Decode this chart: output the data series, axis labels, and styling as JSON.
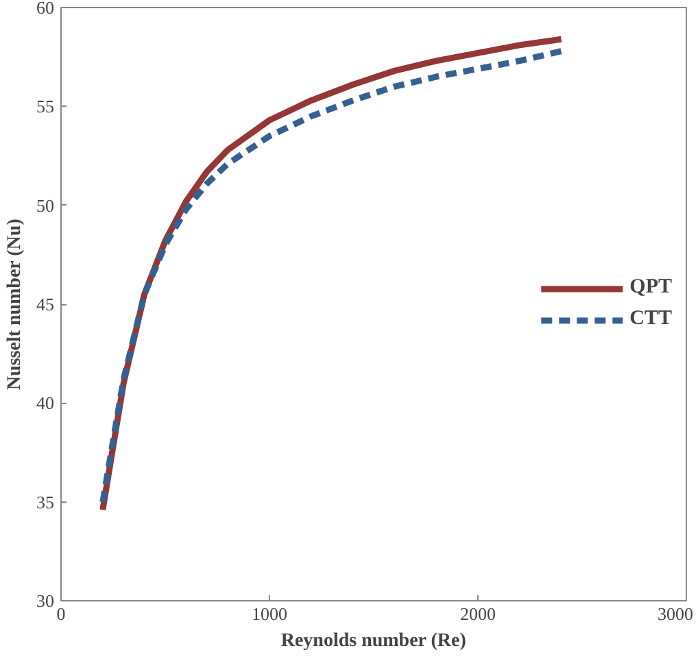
{
  "chart_data": {
    "type": "line",
    "xlabel": "Reynolds number (Re)",
    "ylabel": "Nusselt number (Nu)",
    "xlim": [
      0,
      3000
    ],
    "xticks": [
      0,
      1000,
      2000,
      3000
    ],
    "ylim": [
      30,
      60
    ],
    "yticks": [
      30,
      35,
      40,
      45,
      50,
      55,
      60
    ],
    "grid": false,
    "legend": "right",
    "marker": "none",
    "series": [
      {
        "name": "QPT",
        "color": "#953735",
        "line_style": "solid",
        "x": [
          200,
          300,
          400,
          500,
          600,
          700,
          800,
          1000,
          1200,
          1400,
          1600,
          1800,
          2000,
          2200,
          2400
        ],
        "values": [
          34.6,
          41,
          45.5,
          48.2,
          50.2,
          51.7,
          52.8,
          54.3,
          55.3,
          56.1,
          56.8,
          57.3,
          57.7,
          58.1,
          58.4
        ]
      },
      {
        "name": "CTT",
        "color": "#376092",
        "line_style": "dashed",
        "x": [
          200,
          300,
          400,
          500,
          600,
          700,
          800,
          1000,
          1200,
          1400,
          1600,
          1800,
          2000,
          2200,
          2400
        ],
        "values": [
          35.0,
          41.2,
          45.5,
          48.0,
          49.8,
          51.1,
          52.1,
          53.5,
          54.5,
          55.3,
          56.0,
          56.5,
          56.9,
          57.3,
          57.8
        ]
      }
    ]
  }
}
